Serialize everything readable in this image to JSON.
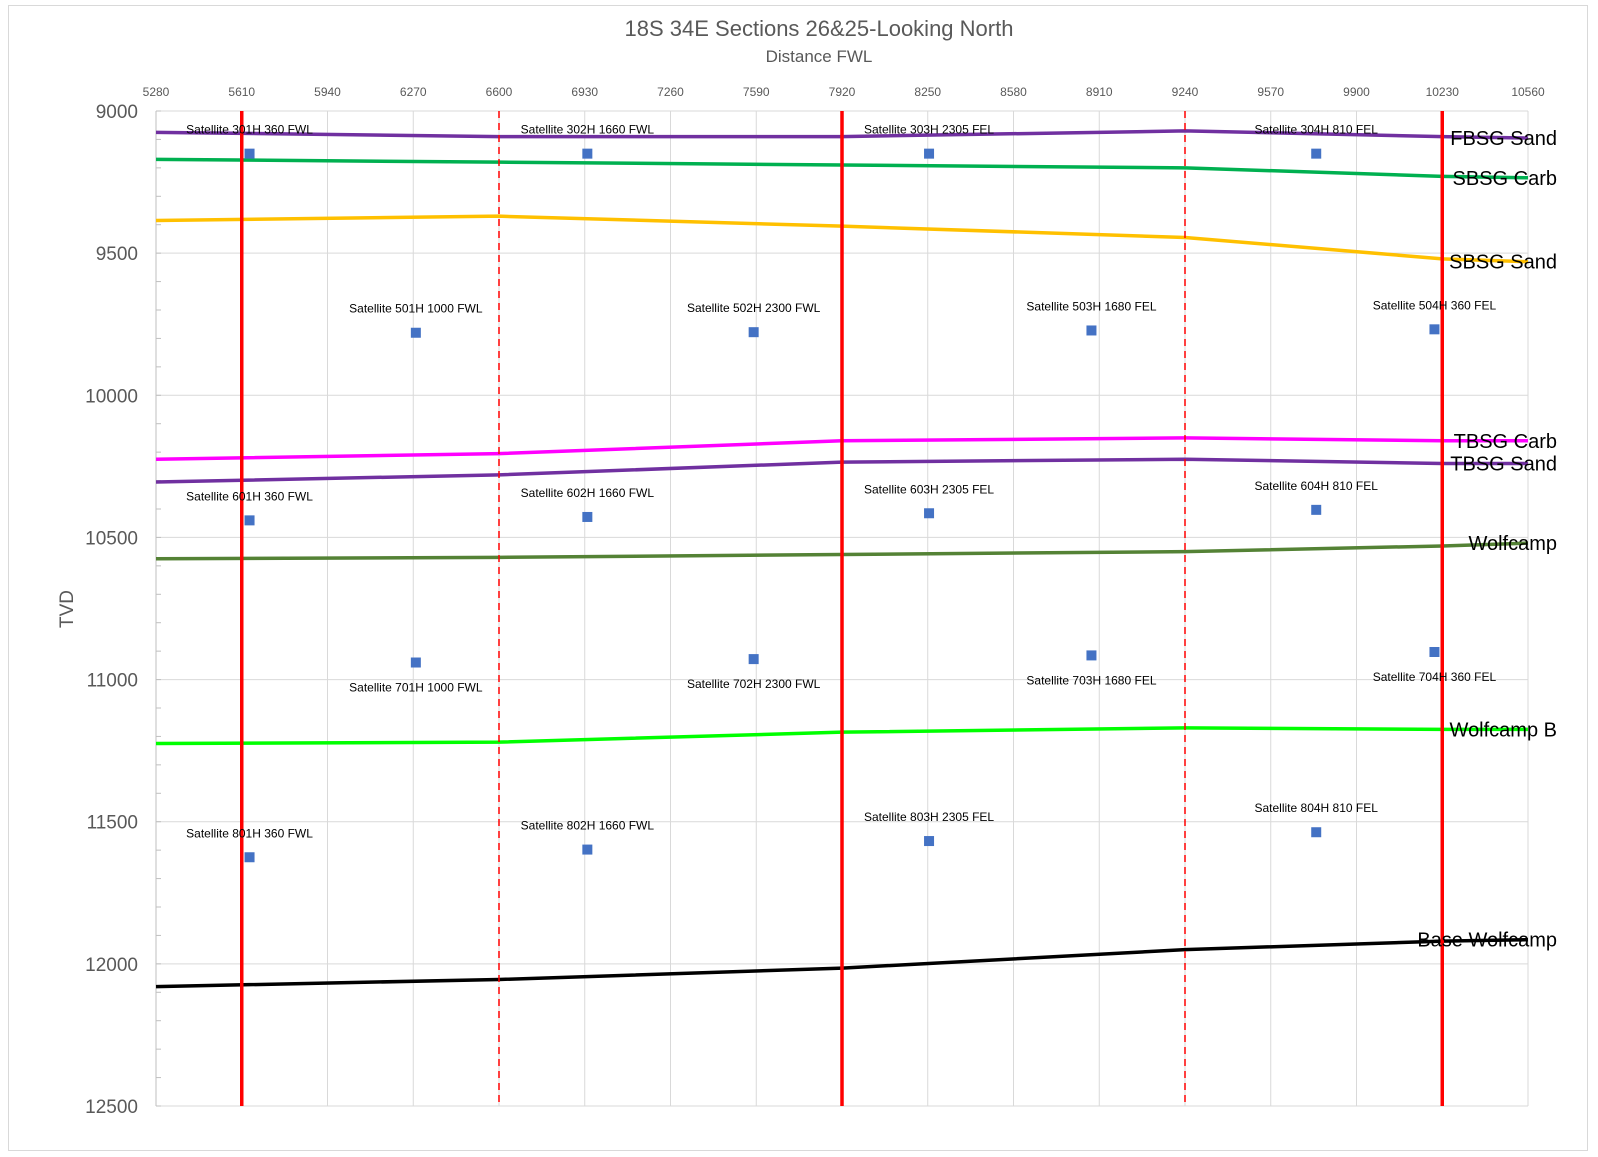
{
  "chart_data": {
    "type": "scatter",
    "title": "18S 34E Sections 26&25-Looking North",
    "subtitle": "Distance FWL",
    "ylabel": "TVD",
    "xlim": [
      5280,
      10560
    ],
    "ylim": [
      9000,
      12500
    ],
    "y_reversed": true,
    "x_axis_position": "top",
    "xticks": [
      5280,
      5610,
      5940,
      6270,
      6600,
      6930,
      7260,
      7590,
      7920,
      8250,
      8580,
      8910,
      9240,
      9570,
      9900,
      10230,
      10560
    ],
    "yticks": [
      9000,
      9500,
      10000,
      10500,
      11000,
      11500,
      12000,
      12500
    ],
    "grid": true,
    "section_lines": [
      {
        "x": 5610,
        "style": "solid",
        "color": "#ff0000"
      },
      {
        "x": 6600,
        "style": "dashed",
        "color": "#ff0000"
      },
      {
        "x": 7920,
        "style": "solid",
        "color": "#ff0000"
      },
      {
        "x": 9240,
        "style": "dashed",
        "color": "#ff0000"
      },
      {
        "x": 10230,
        "style": "solid",
        "color": "#ff0000"
      }
    ],
    "formations": [
      {
        "name": "FBSG Sand",
        "color": "#7030a0",
        "x": [
          5280,
          6600,
          7920,
          9240,
          10230,
          10560
        ],
        "y": [
          9075,
          9090,
          9090,
          9070,
          9090,
          9095
        ]
      },
      {
        "name": "SBSG Carb",
        "color": "#00b050",
        "x": [
          5280,
          6600,
          7920,
          9240,
          10230,
          10560
        ],
        "y": [
          9170,
          9180,
          9190,
          9200,
          9230,
          9235
        ]
      },
      {
        "name": "SBSG Sand",
        "color": "#ffc000",
        "x": [
          5280,
          6600,
          7920,
          9240,
          10230,
          10560
        ],
        "y": [
          9385,
          9370,
          9405,
          9445,
          9520,
          9530
        ]
      },
      {
        "name": "TBSG Carb",
        "color": "#ff00ff",
        "x": [
          5280,
          6600,
          7920,
          9240,
          10230,
          10560
        ],
        "y": [
          10225,
          10205,
          10160,
          10150,
          10160,
          10160
        ]
      },
      {
        "name": "TBSG Sand",
        "color": "#7030a0",
        "x": [
          5280,
          6600,
          7920,
          9240,
          10230,
          10560
        ],
        "y": [
          10305,
          10280,
          10235,
          10225,
          10240,
          10240
        ]
      },
      {
        "name": "Wolfcamp",
        "color": "#548235",
        "x": [
          5280,
          6600,
          7920,
          9240,
          10230,
          10560
        ],
        "y": [
          10575,
          10570,
          10560,
          10550,
          10530,
          10520
        ]
      },
      {
        "name": "Wolfcamp B",
        "color": "#00ff00",
        "x": [
          5280,
          6600,
          7920,
          9240,
          10230,
          10560
        ],
        "y": [
          11225,
          11220,
          11185,
          11170,
          11175,
          11175
        ]
      },
      {
        "name": "Base Wolfcamp",
        "color": "#000000",
        "x": [
          5280,
          6600,
          7920,
          9240,
          10230,
          10560
        ],
        "y": [
          12080,
          12055,
          12015,
          11950,
          11920,
          11915
        ]
      }
    ],
    "wells": [
      {
        "name": "Satellite 301H 360 FWL",
        "x": 5640,
        "y": 9150,
        "label_pos": "above"
      },
      {
        "name": "Satellite 302H 1660 FWL",
        "x": 6940,
        "y": 9150,
        "label_pos": "above"
      },
      {
        "name": "Satellite 303H 2305 FEL",
        "x": 8255,
        "y": 9150,
        "label_pos": "above"
      },
      {
        "name": "Satellite 304H 810 FEL",
        "x": 9745,
        "y": 9150,
        "label_pos": "above"
      },
      {
        "name": "Satellite 501H 1000 FWL",
        "x": 6280,
        "y": 9780,
        "label_pos": "above"
      },
      {
        "name": "Satellite 502H 2300 FWL",
        "x": 7580,
        "y": 9778,
        "label_pos": "above"
      },
      {
        "name": "Satellite 503H 1680 FEL",
        "x": 8880,
        "y": 9772,
        "label_pos": "above"
      },
      {
        "name": "Satellite 504H 360 FEL",
        "x": 10200,
        "y": 9768,
        "label_pos": "above"
      },
      {
        "name": "Satellite 601H 360 FWL",
        "x": 5640,
        "y": 10440,
        "label_pos": "above"
      },
      {
        "name": "Satellite 602H 1660 FWL",
        "x": 6940,
        "y": 10428,
        "label_pos": "above"
      },
      {
        "name": "Satellite 603H 2305 FEL",
        "x": 8255,
        "y": 10415,
        "label_pos": "above"
      },
      {
        "name": "Satellite 604H 810 FEL",
        "x": 9745,
        "y": 10403,
        "label_pos": "above"
      },
      {
        "name": "Satellite 701H 1000 FWL",
        "x": 6280,
        "y": 10940,
        "label_pos": "below"
      },
      {
        "name": "Satellite 702H 2300 FWL",
        "x": 7580,
        "y": 10928,
        "label_pos": "below"
      },
      {
        "name": "Satellite 703H 1680 FEL",
        "x": 8880,
        "y": 10915,
        "label_pos": "below"
      },
      {
        "name": "Satellite 704H 360 FEL",
        "x": 10200,
        "y": 10903,
        "label_pos": "below"
      },
      {
        "name": "Satellite 801H 360 FWL",
        "x": 5640,
        "y": 11625,
        "label_pos": "above"
      },
      {
        "name": "Satellite 802H 1660 FWL",
        "x": 6940,
        "y": 11598,
        "label_pos": "above"
      },
      {
        "name": "Satellite 803H 2305 FEL",
        "x": 8255,
        "y": 11568,
        "label_pos": "above"
      },
      {
        "name": "Satellite 804H 810 FEL",
        "x": 9745,
        "y": 11537,
        "label_pos": "above"
      }
    ],
    "marker_color": "#4472c4"
  }
}
